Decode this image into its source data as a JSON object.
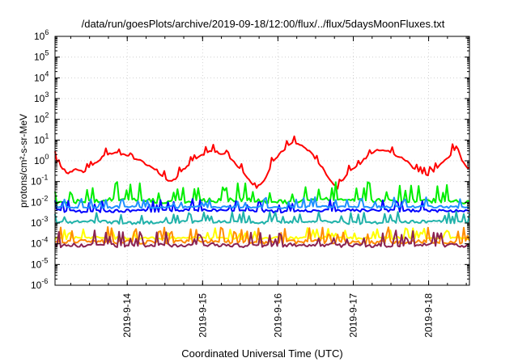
{
  "chart_data": {
    "type": "line",
    "title": "/data/run/goesPlots/archive/2019-09-18/12:00/flux/../flux/5daysMoonFluxes.txt",
    "xlabel": "Coordinated Universal Time (UTC)",
    "ylabel": "protons/cm²-s-sr-MeV",
    "y_scale": "log",
    "ylim": [
      1e-06,
      1000000.0
    ],
    "y_ticks": [
      {
        "value": 1000000.0,
        "base": "10",
        "exp": "6"
      },
      {
        "value": 100000.0,
        "base": "10",
        "exp": "5"
      },
      {
        "value": 10000.0,
        "base": "10",
        "exp": "4"
      },
      {
        "value": 1000.0,
        "base": "10",
        "exp": "3"
      },
      {
        "value": 100.0,
        "base": "10",
        "exp": "2"
      },
      {
        "value": 10.0,
        "base": "10",
        "exp": "1"
      },
      {
        "value": 1.0,
        "base": "10",
        "exp": "0"
      },
      {
        "value": 0.1,
        "base": "10",
        "exp": "-1"
      },
      {
        "value": 0.01,
        "base": "10",
        "exp": "-2"
      },
      {
        "value": 0.001,
        "base": "10",
        "exp": "-3"
      },
      {
        "value": 0.0001,
        "base": "10",
        "exp": "-4"
      },
      {
        "value": 1e-05,
        "base": "10",
        "exp": "-5"
      },
      {
        "value": 1e-06,
        "base": "10",
        "exp": "-6"
      }
    ],
    "xlim": [
      "2019-09-13T01:00",
      "2019-09-18T13:00"
    ],
    "x_ticks": [
      "2019-9-14",
      "2019-9-15",
      "2019-9-16",
      "2019-9-17",
      "2019-9-18"
    ],
    "x_tick_dates": [
      "2019-09-14T00:00",
      "2019-09-15T00:00",
      "2019-09-16T00:00",
      "2019-09-17T00:00",
      "2019-09-18T00:00"
    ],
    "grid": true,
    "colors": {
      "red": "#ff0000",
      "green": "#00ee00",
      "blue": "#0000ff",
      "dodgerblue": "#1e90ff",
      "teal": "#20b2aa",
      "yellow": "#ffff00",
      "orange": "#ff8c00",
      "purple": "#8b2252"
    },
    "series": [
      {
        "color": "#ff0000",
        "x": [
          "2019-09-13T01:00",
          "2019-09-13T03:00",
          "2019-09-13T05:00",
          "2019-09-13T08:00",
          "2019-09-13T10:00",
          "2019-09-13T12:00",
          "2019-09-13T14:00",
          "2019-09-13T16:00",
          "2019-09-13T18:00",
          "2019-09-13T20:00",
          "2019-09-13T22:00",
          "2019-09-14T00:00",
          "2019-09-14T02:00",
          "2019-09-14T04:00",
          "2019-09-14T07:00",
          "2019-09-14T09:00",
          "2019-09-14T11:00",
          "2019-09-14T13:00",
          "2019-09-14T15:00",
          "2019-09-14T17:00",
          "2019-09-14T19:00",
          "2019-09-14T21:00",
          "2019-09-14T23:00",
          "2019-09-15T01:00",
          "2019-09-15T03:00",
          "2019-09-15T05:00",
          "2019-09-15T07:00",
          "2019-09-15T09:00",
          "2019-09-15T11:00",
          "2019-09-15T13:00",
          "2019-09-15T15:00",
          "2019-09-15T17:00",
          "2019-09-15T19:00",
          "2019-09-15T21:00",
          "2019-09-15T23:00",
          "2019-09-16T01:00",
          "2019-09-16T03:00",
          "2019-09-16T05:00",
          "2019-09-16T07:00",
          "2019-09-16T09:00",
          "2019-09-16T11:00",
          "2019-09-16T13:00",
          "2019-09-16T15:00",
          "2019-09-16T17:00",
          "2019-09-16T19:00",
          "2019-09-16T21:00",
          "2019-09-16T23:00",
          "2019-09-17T01:00",
          "2019-09-17T03:00",
          "2019-09-17T05:00",
          "2019-09-17T07:00",
          "2019-09-17T09:00",
          "2019-09-17T11:00",
          "2019-09-17T13:00",
          "2019-09-17T15:00",
          "2019-09-17T17:00",
          "2019-09-17T19:00",
          "2019-09-17T21:00",
          "2019-09-17T23:00",
          "2019-09-18T01:00",
          "2019-09-18T03:00",
          "2019-09-18T05:00",
          "2019-09-18T07:00",
          "2019-09-18T09:00",
          "2019-09-18T11:00",
          "2019-09-18T13:00"
        ],
        "values": [
          1.2,
          0.5,
          0.25,
          0.4,
          0.3,
          0.5,
          0.8,
          1.5,
          2,
          2.5,
          2,
          1.8,
          1.2,
          1,
          0.6,
          0.4,
          0.2,
          0.1,
          0.12,
          0.3,
          0.5,
          1,
          1.5,
          2.5,
          3,
          2.5,
          2,
          1.2,
          0.6,
          0.3,
          0.1,
          0.05,
          0.08,
          0.3,
          1.2,
          2.5,
          5,
          8,
          6,
          4,
          2,
          0.8,
          0.3,
          0.1,
          0.05,
          0.15,
          0.3,
          0.5,
          1,
          2,
          3,
          3.5,
          3,
          2,
          1.5,
          1,
          0.5,
          0.3,
          0.2,
          0.25,
          0.5,
          1,
          2,
          5,
          0.8,
          0.3
        ]
      },
      {
        "color": "#00ee00",
        "x": [
          "2019-09-13T01:00",
          "2019-09-13T13:00",
          "2019-09-14T01:00",
          "2019-09-14T13:00",
          "2019-09-15T01:00",
          "2019-09-15T13:00",
          "2019-09-16T01:00",
          "2019-09-16T13:00",
          "2019-09-17T01:00",
          "2019-09-17T13:00",
          "2019-09-18T01:00",
          "2019-09-18T13:00"
        ],
        "values": [
          0.01,
          0.012,
          0.015,
          0.01,
          0.012,
          0.014,
          0.01,
          0.013,
          0.015,
          0.011,
          0.012,
          0.01
        ]
      },
      {
        "color": "#0000ff",
        "x": [
          "2019-09-13T01:00",
          "2019-09-13T13:00",
          "2019-09-14T01:00",
          "2019-09-14T13:00",
          "2019-09-15T01:00",
          "2019-09-15T13:00",
          "2019-09-16T01:00",
          "2019-09-16T13:00",
          "2019-09-17T01:00",
          "2019-09-17T13:00",
          "2019-09-18T01:00",
          "2019-09-18T13:00"
        ],
        "values": [
          0.004,
          0.0035,
          0.004,
          0.0038,
          0.0042,
          0.004,
          0.0036,
          0.004,
          0.0041,
          0.0039,
          0.004,
          0.0038
        ]
      },
      {
        "color": "#1e90ff",
        "x": [
          "2019-09-13T01:00",
          "2019-09-13T13:00",
          "2019-09-14T01:00",
          "2019-09-14T13:00",
          "2019-09-15T01:00",
          "2019-09-15T13:00",
          "2019-09-16T01:00",
          "2019-09-16T13:00",
          "2019-09-17T01:00",
          "2019-09-17T13:00",
          "2019-09-18T01:00",
          "2019-09-18T13:00"
        ],
        "values": [
          0.006,
          0.0055,
          0.006,
          0.0058,
          0.006,
          0.0062,
          0.0056,
          0.006,
          0.0061,
          0.0059,
          0.006,
          0.0058
        ]
      },
      {
        "color": "#20b2aa",
        "x": [
          "2019-09-13T01:00",
          "2019-09-13T13:00",
          "2019-09-14T01:00",
          "2019-09-14T13:00",
          "2019-09-15T01:00",
          "2019-09-15T13:00",
          "2019-09-16T01:00",
          "2019-09-16T13:00",
          "2019-09-17T01:00",
          "2019-09-17T13:00",
          "2019-09-18T01:00",
          "2019-09-18T13:00"
        ],
        "values": [
          0.001,
          0.0012,
          0.001,
          0.0011,
          0.0012,
          0.001,
          0.0011,
          0.0012,
          0.001,
          0.0011,
          0.0012,
          0.001
        ]
      },
      {
        "color": "#ffff00",
        "x": [
          "2019-09-13T01:00",
          "2019-09-13T13:00",
          "2019-09-14T01:00",
          "2019-09-14T13:00",
          "2019-09-15T01:00",
          "2019-09-15T13:00",
          "2019-09-16T01:00",
          "2019-09-16T13:00",
          "2019-09-17T01:00",
          "2019-09-17T13:00",
          "2019-09-18T01:00",
          "2019-09-18T13:00"
        ],
        "values": [
          0.00018,
          0.0002,
          0.00018,
          0.00019,
          0.0002,
          0.00018,
          0.00019,
          0.0002,
          0.00018,
          0.00019,
          0.0002,
          0.00018
        ]
      },
      {
        "color": "#ff8c00",
        "x": [
          "2019-09-13T01:00",
          "2019-09-13T13:00",
          "2019-09-14T01:00",
          "2019-09-14T13:00",
          "2019-09-15T01:00",
          "2019-09-15T13:00",
          "2019-09-16T01:00",
          "2019-09-16T13:00",
          "2019-09-17T01:00",
          "2019-09-17T13:00",
          "2019-09-18T01:00",
          "2019-09-18T13:00"
        ],
        "values": [
          0.00012,
          0.00013,
          0.00012,
          0.00012,
          0.00013,
          0.00012,
          0.00012,
          0.00013,
          0.00012,
          0.00012,
          0.00013,
          0.00012
        ]
      },
      {
        "color": "#8b2252",
        "x": [
          "2019-09-13T01:00",
          "2019-09-13T13:00",
          "2019-09-14T01:00",
          "2019-09-14T13:00",
          "2019-09-15T01:00",
          "2019-09-15T13:00",
          "2019-09-16T01:00",
          "2019-09-16T13:00",
          "2019-09-17T01:00",
          "2019-09-17T13:00",
          "2019-09-18T01:00",
          "2019-09-18T13:00"
        ],
        "values": [
          8e-05,
          9e-05,
          8e-05,
          8.5e-05,
          9e-05,
          8e-05,
          8.5e-05,
          9e-05,
          8e-05,
          8.5e-05,
          9e-05,
          8e-05
        ]
      }
    ]
  }
}
